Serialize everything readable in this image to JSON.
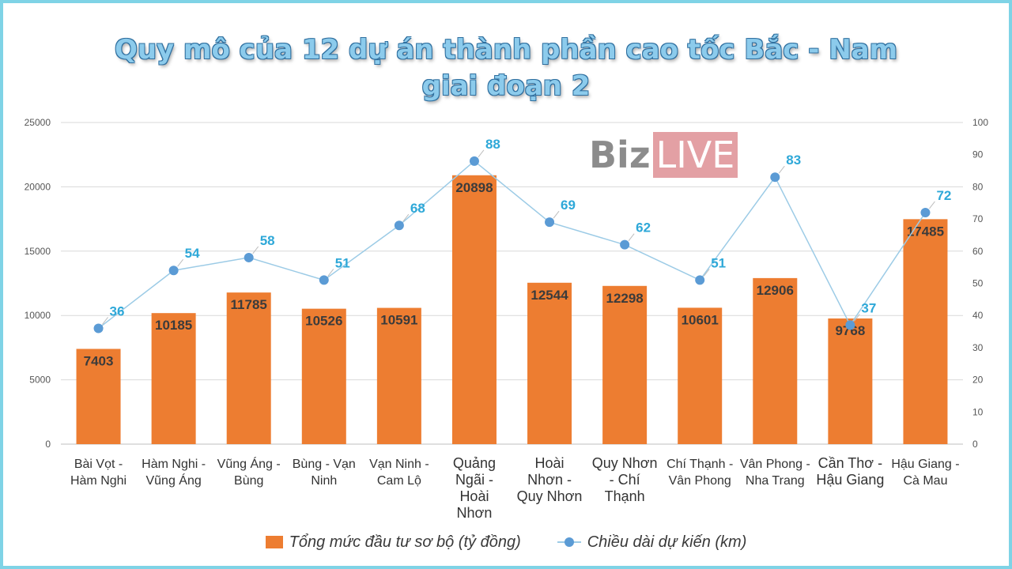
{
  "chart_data": {
    "type": "bar",
    "title_lines": [
      "Quy mô của 12 dự án thành phần cao tốc Bắc - Nam",
      "giai đoạn 2"
    ],
    "categories": [
      [
        "Bài Vọt -",
        "Hàm Nghi"
      ],
      [
        "Hàm Nghi -",
        "Vũng Áng"
      ],
      [
        "Vũng Áng -",
        "Bùng"
      ],
      [
        "Bùng - Vạn",
        "Ninh"
      ],
      [
        "Vạn Ninh -",
        "Cam Lộ"
      ],
      [
        "Quảng",
        "Ngãi -",
        "Hoài",
        "Nhơn"
      ],
      [
        "Hoài",
        "Nhơn -",
        "Quy Nhơn"
      ],
      [
        "Quy Nhơn",
        "- Chí",
        "Thạnh"
      ],
      [
        "Chí Thạnh -",
        "Vân Phong"
      ],
      [
        "Vân Phong -",
        "Nha Trang"
      ],
      [
        "Cần Thơ -",
        "Hậu Giang"
      ],
      [
        "Hậu Giang -",
        "Cà Mau"
      ]
    ],
    "series": [
      {
        "name": "Tổng mức đầu tư sơ bộ (tỷ đồng)",
        "type": "bar",
        "axis": "left",
        "color": "#ed7d31",
        "values": [
          7403,
          10185,
          11785,
          10526,
          10591,
          20898,
          12544,
          12298,
          10601,
          12906,
          9768,
          17485
        ]
      },
      {
        "name": "Chiều dài dự kiến (km)",
        "type": "line",
        "axis": "right",
        "color": "#5b9bd5",
        "values": [
          36,
          54,
          58,
          51,
          68,
          88,
          69,
          62,
          51,
          83,
          37,
          72
        ]
      }
    ],
    "y_left": {
      "min": 0,
      "max": 25000,
      "ticks": [
        0,
        5000,
        10000,
        15000,
        20000,
        25000
      ]
    },
    "y_right": {
      "min": 0,
      "max": 100,
      "ticks": [
        0,
        10,
        20,
        30,
        40,
        50,
        60,
        70,
        80,
        90,
        100
      ]
    },
    "grid": true,
    "legend": "bottom"
  },
  "logo": {
    "part1": "Biz",
    "part2": "LIVE"
  }
}
